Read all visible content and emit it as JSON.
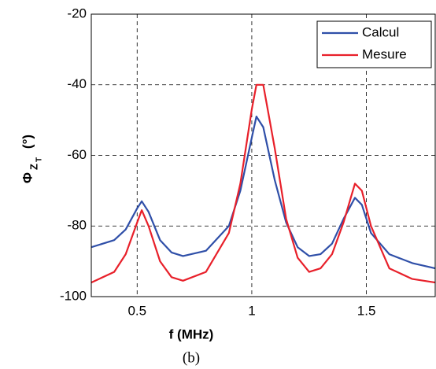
{
  "chart_data": {
    "type": "line",
    "xlabel": "f (MHz)",
    "ylabel": {
      "symbol": "Φ",
      "sub": "Z",
      "subsub": "T",
      "unit": "(°)"
    },
    "caption": "(b)",
    "x": [
      0.3,
      0.4,
      0.45,
      0.5,
      0.52,
      0.55,
      0.6,
      0.65,
      0.7,
      0.8,
      0.9,
      0.95,
      1.0,
      1.02,
      1.05,
      1.1,
      1.15,
      1.2,
      1.25,
      1.3,
      1.35,
      1.4,
      1.45,
      1.48,
      1.52,
      1.6,
      1.7,
      1.8
    ],
    "series": [
      {
        "name": "Calcul",
        "color": "#2f4fa8",
        "values": [
          -86,
          -84,
          -81,
          -75,
          -73,
          -76,
          -84,
          -87.5,
          -88.5,
          -87,
          -80,
          -70,
          -55,
          -49,
          -52,
          -67,
          -79,
          -86,
          -88.5,
          -88,
          -85,
          -78,
          -72,
          -74,
          -82,
          -88,
          -90.5,
          -92
        ]
      },
      {
        "name": "Mesure",
        "color": "#e8202a",
        "values": [
          -96,
          -93,
          -88,
          -79,
          -75.5,
          -80,
          -90,
          -94.5,
          -95.5,
          -93,
          -82,
          -68,
          -47,
          -40,
          -40,
          -58,
          -78,
          -89,
          -93,
          -92,
          -88,
          -79,
          -68,
          -70,
          -80,
          -92,
          -95,
          -96
        ]
      }
    ],
    "xlim": [
      0.3,
      1.8
    ],
    "ylim": [
      -100,
      -20
    ],
    "xticks": [
      0.5,
      1,
      1.5
    ],
    "yticks": [
      -100,
      -80,
      -60,
      -40,
      -20
    ],
    "grid": true,
    "legend": "top-right"
  }
}
